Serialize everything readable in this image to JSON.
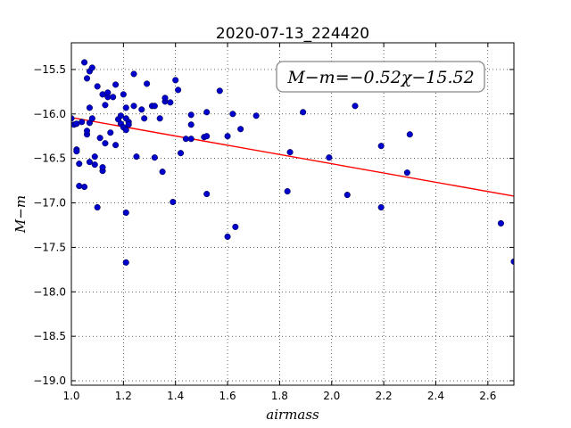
{
  "chart_data": {
    "type": "scatter",
    "title": "2020-07-13_224420",
    "xlabel": "airmass",
    "ylabel": "M−m",
    "xlim": [
      1.0,
      2.7
    ],
    "ylim": [
      -19.05,
      -15.2
    ],
    "y_inverted": true,
    "grid": true,
    "xticks": [
      1.0,
      1.2,
      1.4,
      1.6,
      1.8,
      2.0,
      2.2,
      2.4,
      2.6
    ],
    "xtick_labels": [
      "1.0",
      "1.2",
      "1.4",
      "1.6",
      "1.8",
      "2.0",
      "2.2",
      "2.4",
      "2.6"
    ],
    "yticks": [
      -15.5,
      -16.0,
      -16.5,
      -17.0,
      -17.5,
      -18.0,
      -18.5,
      -19.0
    ],
    "ytick_labels": [
      "−15.5",
      "−16.0",
      "−16.5",
      "−17.0",
      "−17.5",
      "−18.0",
      "−18.5",
      "−19.0"
    ],
    "annotation": "M−m=−0.52χ−15.52",
    "fit": {
      "slope": -0.52,
      "intercept": -15.52,
      "color": "#ff0000"
    },
    "point_color": "#0000cc",
    "points": [
      [
        1.0,
        -16.05
      ],
      [
        1.01,
        -16.12
      ],
      [
        1.02,
        -16.4
      ],
      [
        1.02,
        -16.42
      ],
      [
        1.02,
        -16.11
      ],
      [
        1.03,
        -16.56
      ],
      [
        1.03,
        -16.81
      ],
      [
        1.04,
        -16.09
      ],
      [
        1.05,
        -16.82
      ],
      [
        1.05,
        -15.42
      ],
      [
        1.06,
        -15.6
      ],
      [
        1.06,
        -16.23
      ],
      [
        1.06,
        -16.19
      ],
      [
        1.07,
        -16.54
      ],
      [
        1.07,
        -16.1
      ],
      [
        1.07,
        -15.93
      ],
      [
        1.07,
        -15.52
      ],
      [
        1.08,
        -16.05
      ],
      [
        1.08,
        -15.48
      ],
      [
        1.09,
        -16.57
      ],
      [
        1.09,
        -16.48
      ],
      [
        1.1,
        -15.69
      ],
      [
        1.1,
        -17.05
      ],
      [
        1.11,
        -16.27
      ],
      [
        1.12,
        -16.64
      ],
      [
        1.12,
        -16.6
      ],
      [
        1.12,
        -15.78
      ],
      [
        1.13,
        -16.33
      ],
      [
        1.13,
        -15.9
      ],
      [
        1.14,
        -15.81
      ],
      [
        1.14,
        -15.76
      ],
      [
        1.15,
        -16.21
      ],
      [
        1.16,
        -15.81
      ],
      [
        1.17,
        -16.35
      ],
      [
        1.17,
        -15.67
      ],
      [
        1.18,
        -16.06
      ],
      [
        1.19,
        -16.02
      ],
      [
        1.19,
        -16.11
      ],
      [
        1.2,
        -15.78
      ],
      [
        1.2,
        -16.15
      ],
      [
        1.21,
        -16.18
      ],
      [
        1.21,
        -16.05
      ],
      [
        1.21,
        -15.93
      ],
      [
        1.22,
        -16.09
      ],
      [
        1.22,
        -16.12
      ],
      [
        1.21,
        -17.11
      ],
      [
        1.21,
        -17.67
      ],
      [
        1.24,
        -15.55
      ],
      [
        1.24,
        -15.91
      ],
      [
        1.25,
        -16.48
      ],
      [
        1.27,
        -15.95
      ],
      [
        1.28,
        -16.05
      ],
      [
        1.29,
        -15.66
      ],
      [
        1.31,
        -15.91
      ],
      [
        1.32,
        -15.91
      ],
      [
        1.32,
        -16.49
      ],
      [
        1.34,
        -16.05
      ],
      [
        1.35,
        -16.65
      ],
      [
        1.36,
        -15.86
      ],
      [
        1.36,
        -15.82
      ],
      [
        1.38,
        -15.87
      ],
      [
        1.39,
        -16.99
      ],
      [
        1.4,
        -15.62
      ],
      [
        1.41,
        -15.73
      ],
      [
        1.42,
        -16.44
      ],
      [
        1.44,
        -16.28
      ],
      [
        1.46,
        -16.28
      ],
      [
        1.46,
        -16.12
      ],
      [
        1.46,
        -16.01
      ],
      [
        1.51,
        -16.26
      ],
      [
        1.52,
        -16.25
      ],
      [
        1.52,
        -15.98
      ],
      [
        1.52,
        -16.9
      ],
      [
        1.57,
        -15.74
      ],
      [
        1.6,
        -16.25
      ],
      [
        1.6,
        -17.38
      ],
      [
        1.62,
        -16.0
      ],
      [
        1.63,
        -17.27
      ],
      [
        1.65,
        -16.17
      ],
      [
        1.71,
        -16.02
      ],
      [
        1.83,
        -16.87
      ],
      [
        1.84,
        -16.43
      ],
      [
        1.89,
        -15.98
      ],
      [
        1.99,
        -16.49
      ],
      [
        2.06,
        -16.91
      ],
      [
        2.09,
        -15.91
      ],
      [
        2.19,
        -16.36
      ],
      [
        2.19,
        -17.05
      ],
      [
        2.29,
        -16.66
      ],
      [
        2.3,
        -16.23
      ],
      [
        2.65,
        -17.23
      ],
      [
        2.7,
        -17.66
      ]
    ]
  }
}
